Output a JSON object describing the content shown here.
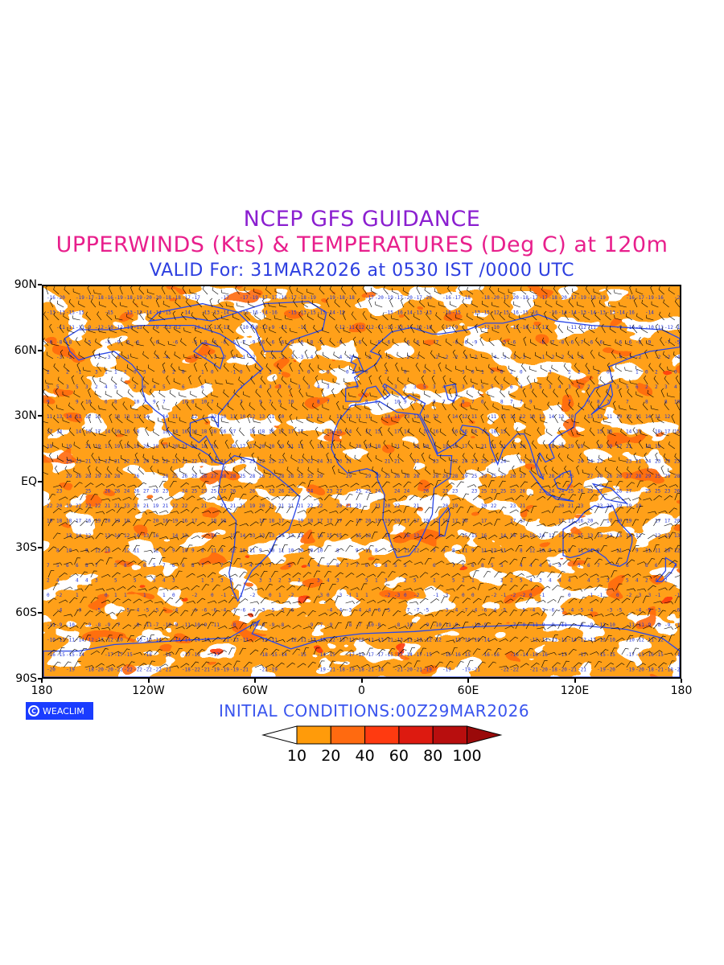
{
  "header": {
    "title": "NCEP GFS GUIDANCE",
    "subtitle": "UPPERWINDS (Kts) & TEMPERATURES (Deg C) at 120m",
    "valid": "VALID For: 31MAR2026 at 0530 IST /0000 UTC",
    "title_color": "#8b1fd0",
    "subtitle_color": "#e81f8c",
    "valid_color": "#2d3fe0"
  },
  "map": {
    "lat_labels": [
      "90N",
      "60N",
      "30N",
      "EQ",
      "30S",
      "60S",
      "90S"
    ],
    "lon_labels": [
      "180",
      "120W",
      "60W",
      "0",
      "60E",
      "120E",
      "180"
    ],
    "coastline_color": "#2a47e6",
    "isotherm_label_color": "#1f33d8",
    "barb_color": "#000000"
  },
  "footer": {
    "badge_text": "WEACLIM",
    "badge_logo": "C",
    "badge_color": "#1a3cff",
    "initial_conditions": "INITIAL  CONDITIONS:00Z29MAR2026",
    "initial_conditions_color": "#3a55ee"
  },
  "legend": {
    "labels": [
      "10",
      "20",
      "40",
      "60",
      "80",
      "100"
    ],
    "colors": [
      "#ffffff",
      "#ff9b0a",
      "#ff6a10",
      "#ff3a10",
      "#dd1a10",
      "#b80e0e",
      "#9a0a0a"
    ]
  }
}
